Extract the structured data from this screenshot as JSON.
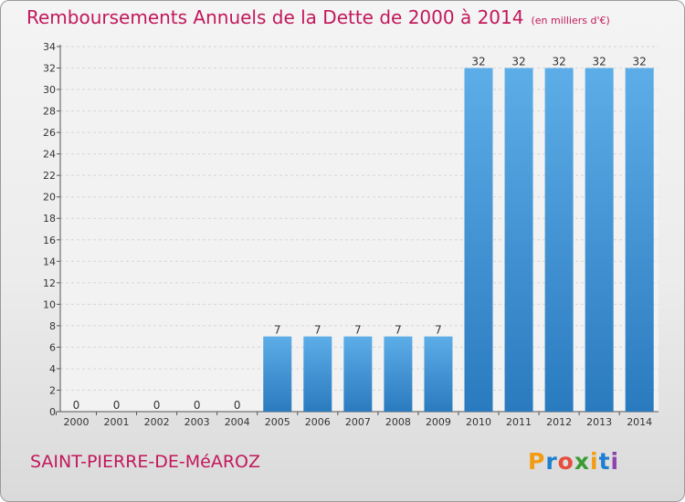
{
  "header": {
    "title": "Remboursements Annuels de la Dette de 2000 à 2014",
    "unit": "(en milliers d'€)"
  },
  "footer": {
    "commune": "SAINT-PIERRE-DE-MéAROZ",
    "logo_text": "Proxiti"
  },
  "colors": {
    "title": "#c2185b",
    "bar_top": "#5dade8",
    "bar_bottom": "#2a7abf",
    "logo_letters": [
      "#f39c12",
      "#1e7fd0",
      "#e74c3c",
      "#3a9b35",
      "#f39c12",
      "#1e7fd0",
      "#8e44ad"
    ]
  },
  "chart_data": {
    "type": "bar",
    "categories": [
      "2000",
      "2001",
      "2002",
      "2003",
      "2004",
      "2005",
      "2006",
      "2007",
      "2008",
      "2009",
      "2010",
      "2011",
      "2012",
      "2013",
      "2014"
    ],
    "values": [
      0,
      0,
      0,
      0,
      0,
      7,
      7,
      7,
      7,
      7,
      32,
      32,
      32,
      32,
      32
    ],
    "data_labels": [
      "0",
      "0",
      "0",
      "0",
      "0",
      "7",
      "7",
      "7",
      "7",
      "7",
      "32",
      "32",
      "32",
      "32",
      "32"
    ],
    "ylim": [
      0,
      34
    ],
    "y_ticks": [
      0,
      2,
      4,
      6,
      8,
      10,
      12,
      14,
      16,
      18,
      20,
      22,
      24,
      26,
      28,
      30,
      32,
      34
    ],
    "grid": true,
    "legend": "none"
  }
}
